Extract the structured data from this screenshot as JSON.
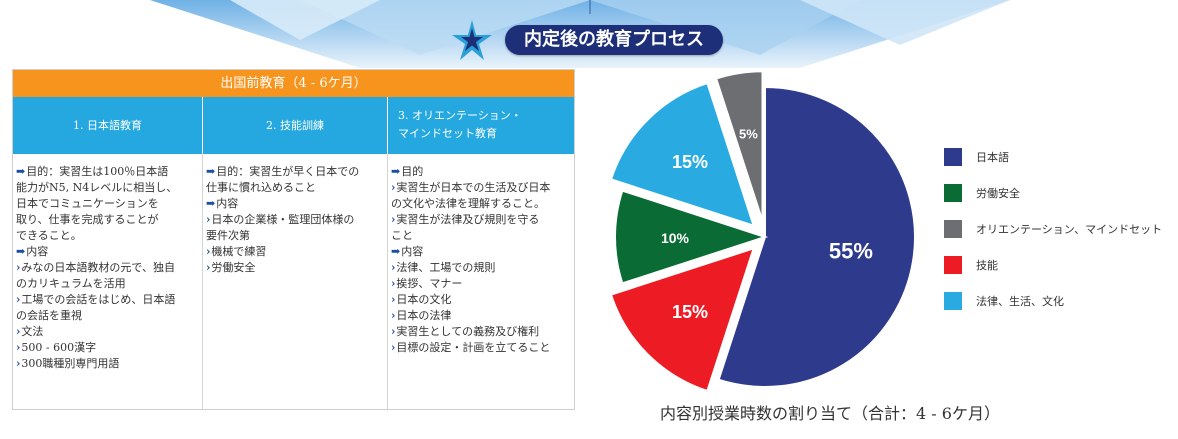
{
  "title": "内定後の教育プロセス",
  "table": {
    "header": "出国前教育（4 - 6ケ月）",
    "columns": [
      {
        "heading": [
          "1. 日本語教育"
        ],
        "lines": [
          {
            "m": "➡",
            "t": "目的：実習生は100％日本語"
          },
          {
            "m": "",
            "t": "能力がN5, N4レベルに相当し、"
          },
          {
            "m": "",
            "t": "日本でコミュニケーションを"
          },
          {
            "m": "",
            "t": "取り、仕事を完成することが"
          },
          {
            "m": "",
            "t": "できること。"
          },
          {
            "m": "➡",
            "t": "内容"
          },
          {
            "m": "›",
            "t": "みなの日本語教材の元で、独自"
          },
          {
            "m": "",
            "t": "のカリキュラムを活用"
          },
          {
            "m": "›",
            "t": "工場での会話をはじめ、日本語"
          },
          {
            "m": "",
            "t": "の会話を重視"
          },
          {
            "m": "›",
            "t": "文法"
          },
          {
            "m": "›",
            "t": "500 - 600漢字"
          },
          {
            "m": "›",
            "t": "300職種別専門用語"
          }
        ]
      },
      {
        "heading": [
          "2. 技能訓練"
        ],
        "lines": [
          {
            "m": "➡",
            "t": "目的：実習生が早く日本での"
          },
          {
            "m": "",
            "t": "仕事に慣れ込めること"
          },
          {
            "m": "➡",
            "t": "内容"
          },
          {
            "m": "›",
            "t": "日本の企業様・監理団体様の"
          },
          {
            "m": "",
            "t": "要件次第"
          },
          {
            "m": "›",
            "t": "機械で練習"
          },
          {
            "m": "›",
            "t": "労働安全"
          }
        ]
      },
      {
        "heading": [
          "3. オリエンテーション・",
          "マインドセット教育"
        ],
        "lines": [
          {
            "m": "➡",
            "t": "目的"
          },
          {
            "m": "›",
            "t": "実習生が日本での生活及び日本"
          },
          {
            "m": "",
            "t": "の文化や法律を理解すること。"
          },
          {
            "m": "›",
            "t": "実習生が法律及び規則を守る"
          },
          {
            "m": "",
            "t": "こと"
          },
          {
            "m": "➡",
            "t": "内容"
          },
          {
            "m": "›",
            "t": "法律、工場での規則"
          },
          {
            "m": "›",
            "t": "挨拶、マナー"
          },
          {
            "m": "›",
            "t": "日本の文化"
          },
          {
            "m": "›",
            "t": "日本の法律"
          },
          {
            "m": "›",
            "t": "実習生としての義務及び権利"
          },
          {
            "m": "›",
            "t": "目標の設定・計画を立てること"
          }
        ]
      }
    ]
  },
  "chart_data": {
    "type": "pie",
    "title": "内容別授業時数の割り当て（合計：4 - 6ケ月）",
    "slices": [
      {
        "label": "日本語",
        "value": 55,
        "display": "55%",
        "color": "#2e3a8c"
      },
      {
        "label": "技能",
        "value": 15,
        "display": "15%",
        "color": "#ed1c24"
      },
      {
        "label": "労働安全",
        "value": 10,
        "display": "10%",
        "color": "#0a6b35"
      },
      {
        "label": "法律、生活、文化",
        "value": 15,
        "display": "15%",
        "color": "#29abe2"
      },
      {
        "label": "オリエンテーション、マインドセット",
        "value": 5,
        "display": "5%",
        "color": "#6d6e71"
      }
    ],
    "legend_order": [
      "日本語",
      "労働安全",
      "オリエンテーション、マインドセット",
      "技能",
      "法律、生活、文化"
    ],
    "legend_position": "right",
    "exploded": [
      "技能",
      "法律、生活、文化",
      "オリエンテーション、マインドセット"
    ]
  }
}
